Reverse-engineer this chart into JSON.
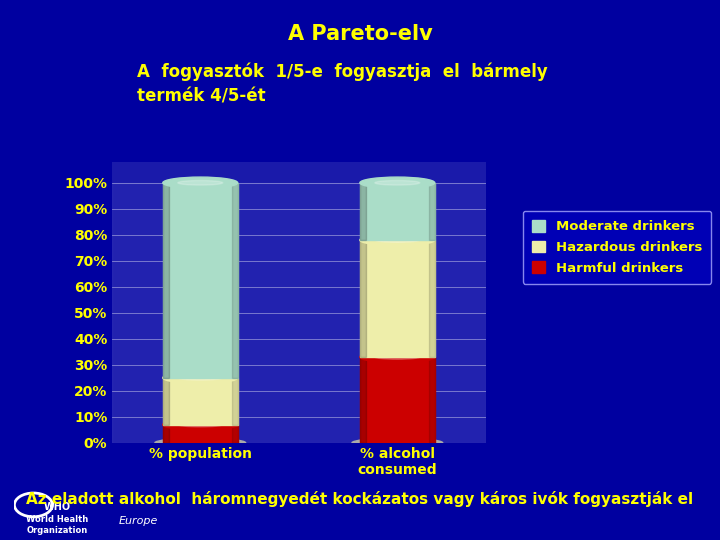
{
  "title": "A Pareto-elv",
  "subtitle": "A  fogyasztók  1/5-e  fogyasztja  el  bármely\ntermék 4/5-ét",
  "footer": "Az eladott alkohol  háromnegyedét kockázatos vagy káros ivók fogyasztják el",
  "categories": [
    "% population",
    "% alcohol\nconsumed"
  ],
  "series": [
    {
      "name": "Harmful drinkers",
      "values": [
        7,
        33
      ],
      "color": "#cc0000"
    },
    {
      "name": "Hazardous drinkers",
      "values": [
        18,
        45
      ],
      "color": "#eeeeaa"
    },
    {
      "name": "Moderate drinkers",
      "values": [
        75,
        22
      ],
      "color": "#aaddc8"
    }
  ],
  "legend_series": [
    {
      "name": "Moderate drinkers",
      "color": "#aaddc8"
    },
    {
      "name": "Hazardous drinkers",
      "color": "#eeeeaa"
    },
    {
      "name": "Harmful drinkers",
      "color": "#cc0000"
    }
  ],
  "background_color": "#0000a0",
  "plot_bg_color": "#1a1aaa",
  "text_color": "#ffff00",
  "yticks": [
    0,
    10,
    20,
    30,
    40,
    50,
    60,
    70,
    80,
    90,
    100
  ],
  "ylim": [
    0,
    108
  ],
  "legend_facecolor": "#0000bb",
  "title_fontsize": 15,
  "subtitle_fontsize": 12,
  "footer_fontsize": 11,
  "tick_fontsize": 10,
  "bar_width": 0.38
}
